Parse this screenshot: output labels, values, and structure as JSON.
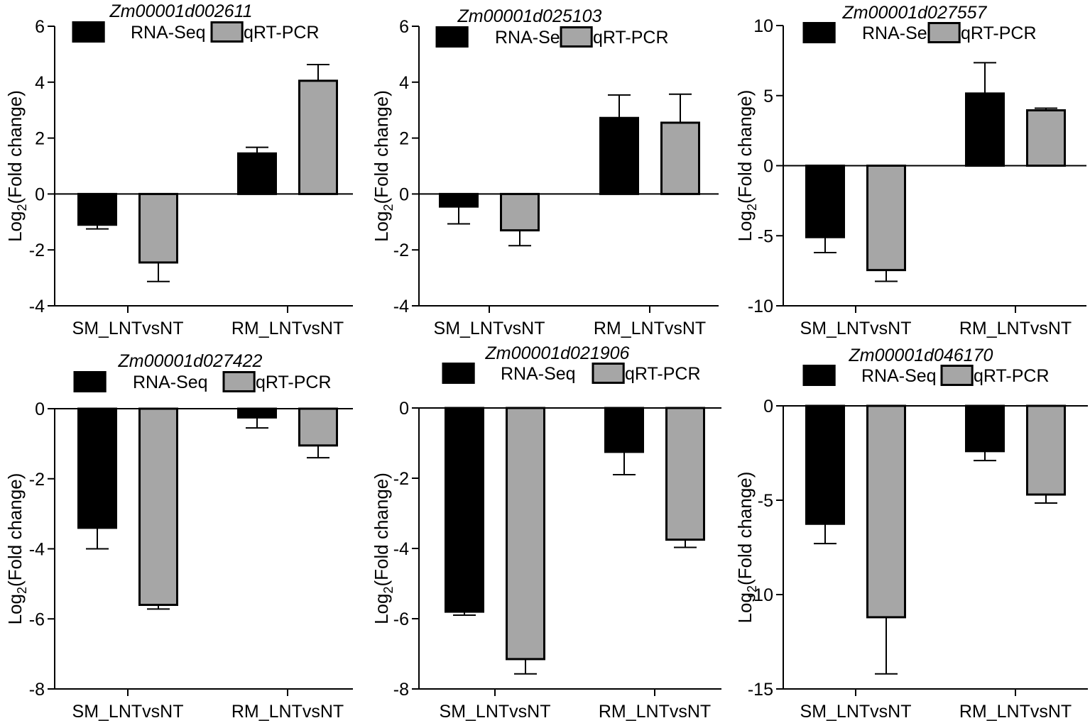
{
  "figure": {
    "description": "RNA-Seq vs qRT-PCR validation, six genes"
  },
  "colors": {
    "rna_seq": "#000000",
    "qrt_pcr": "#a6a6a6",
    "axis": "#000000"
  },
  "legend": [
    "RNA-Seq",
    "qRT-PCR"
  ],
  "chart_data": [
    {
      "type": "bar",
      "title": "Zm00001d002611",
      "xlabel": "",
      "ylabel": {
        "prefix": "Log",
        "sub": "2",
        "suffix": "(Fold change)"
      },
      "ylim": [
        -4,
        6
      ],
      "yticks": [
        -4,
        -2,
        0,
        2,
        4,
        6
      ],
      "categories": [
        "SM_LNTvsNT",
        "RM_LNTvsNT"
      ],
      "series": [
        {
          "name": "RNA-Seq",
          "values": [
            -1.1,
            1.45
          ],
          "errors": [
            0.15,
            0.22
          ]
        },
        {
          "name": "qRT-PCR",
          "values": [
            -2.45,
            4.05
          ],
          "errors": [
            0.68,
            0.58
          ]
        }
      ]
    },
    {
      "type": "bar",
      "title": "Zm00001d025103",
      "xlabel": "",
      "ylabel": {
        "prefix": "Log",
        "sub": "2",
        "suffix": "(Fold change)"
      },
      "ylim": [
        -4,
        6
      ],
      "yticks": [
        -4,
        -2,
        0,
        2,
        4,
        6
      ],
      "categories": [
        "SM_LNTvsNT",
        "RM_LNTvsNT"
      ],
      "series": [
        {
          "name": "RNA-Seq",
          "values": [
            -0.45,
            2.72
          ],
          "errors": [
            0.62,
            0.82
          ]
        },
        {
          "name": "qRT-PCR",
          "values": [
            -1.3,
            2.55
          ],
          "errors": [
            0.55,
            1.02
          ]
        }
      ]
    },
    {
      "type": "bar",
      "title": "Zm00001d027557",
      "xlabel": "",
      "ylabel": {
        "prefix": "Log",
        "sub": "2",
        "suffix": "(Fold change)"
      },
      "ylim": [
        -10,
        10
      ],
      "yticks": [
        -10,
        -5,
        0,
        5,
        10
      ],
      "categories": [
        "SM_LNTvsNT",
        "RM_LNTvsNT"
      ],
      "series": [
        {
          "name": "RNA-Seq",
          "values": [
            -5.1,
            5.15
          ],
          "errors": [
            1.1,
            2.2
          ]
        },
        {
          "name": "qRT-PCR",
          "values": [
            -7.45,
            3.95
          ],
          "errors": [
            0.8,
            0.15
          ]
        }
      ]
    },
    {
      "type": "bar",
      "title": "Zm00001d027422",
      "xlabel": "",
      "ylabel": {
        "prefix": "Log",
        "sub": "2",
        "suffix": "(Fold change)"
      },
      "ylim": [
        -8,
        0
      ],
      "yticks": [
        -8,
        -6,
        -4,
        -2,
        0
      ],
      "categories": [
        "SM_LNTvsNT",
        "RM_LNTvsNT"
      ],
      "series": [
        {
          "name": "RNA-Seq",
          "values": [
            -3.4,
            -0.25
          ],
          "errors": [
            0.6,
            0.3
          ]
        },
        {
          "name": "qRT-PCR",
          "values": [
            -5.6,
            -1.05
          ],
          "errors": [
            0.12,
            0.35
          ]
        }
      ]
    },
    {
      "type": "bar",
      "title": "Zm00001d021906",
      "xlabel": "",
      "ylabel": {
        "prefix": "Log",
        "sub": "2",
        "suffix": "(Fold change)"
      },
      "ylim": [
        -8,
        0
      ],
      "yticks": [
        -8,
        -6,
        -4,
        -2,
        0
      ],
      "categories": [
        "SM_LNTvsNT",
        "RM_LNTvsNT"
      ],
      "series": [
        {
          "name": "RNA-Seq",
          "values": [
            -5.8,
            -1.25
          ],
          "errors": [
            0.1,
            0.65
          ]
        },
        {
          "name": "qRT-PCR",
          "values": [
            -7.15,
            -3.75
          ],
          "errors": [
            0.42,
            0.22
          ]
        }
      ]
    },
    {
      "type": "bar",
      "title": "Zm00001d046170",
      "xlabel": "",
      "ylabel": {
        "prefix": "Log",
        "sub": "2",
        "suffix": "(Fold change)"
      },
      "ylim": [
        -15,
        0
      ],
      "yticks": [
        -15,
        -10,
        -5,
        0
      ],
      "categories": [
        "SM_LNTvsNT",
        "RM_LNTvsNT"
      ],
      "series": [
        {
          "name": "RNA-Seq",
          "values": [
            -6.25,
            -2.4
          ],
          "errors": [
            1.05,
            0.5
          ]
        },
        {
          "name": "qRT-PCR",
          "values": [
            -11.2,
            -4.7
          ],
          "errors": [
            3.0,
            0.45
          ]
        }
      ]
    }
  ]
}
